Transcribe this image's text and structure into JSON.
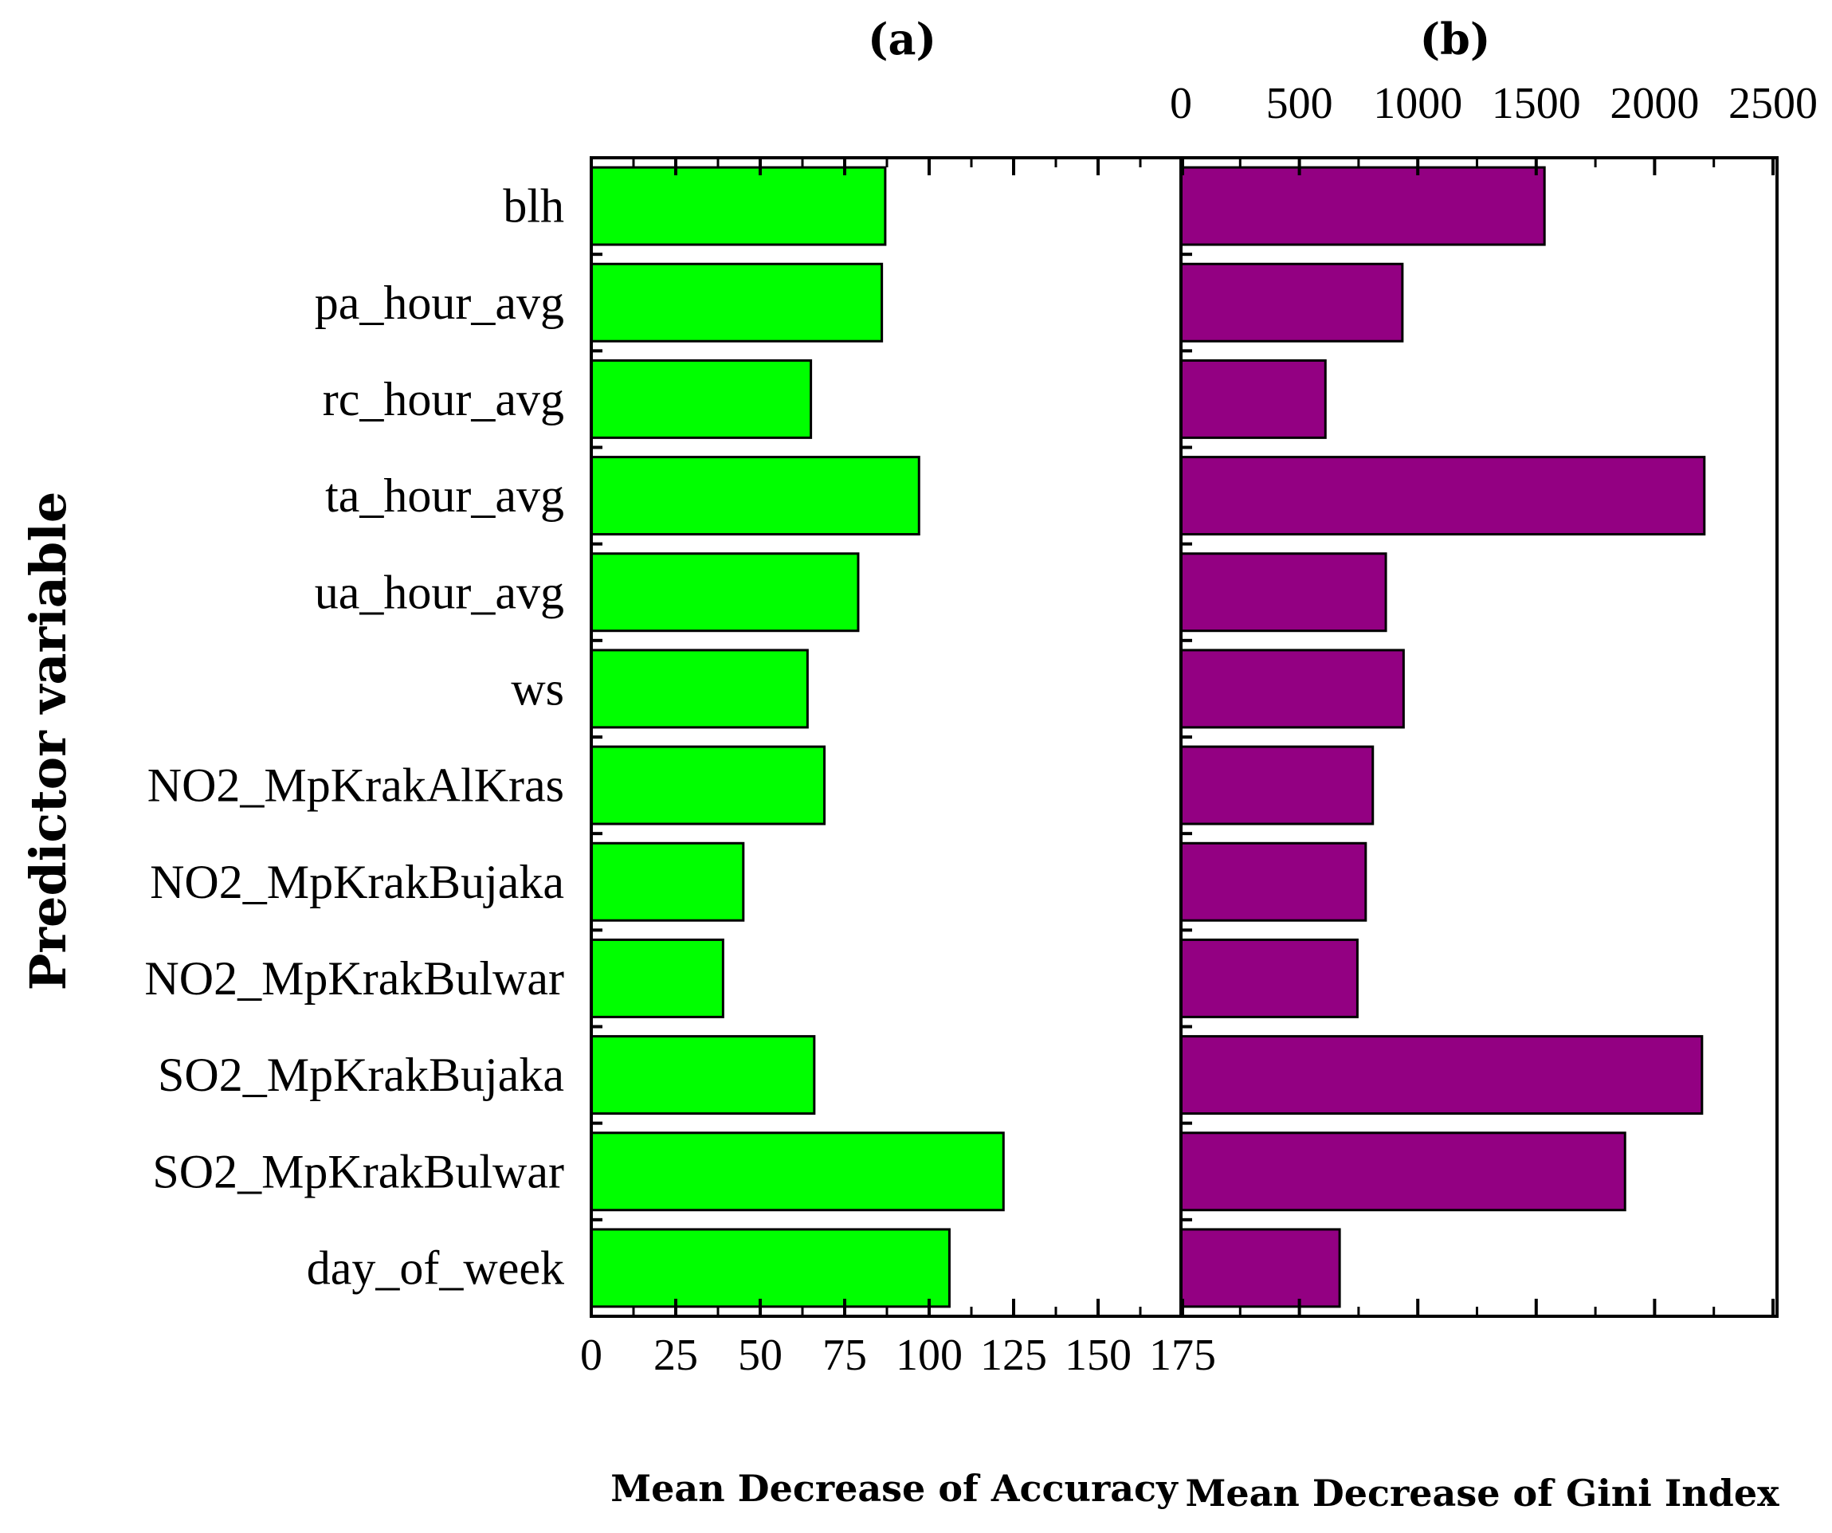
{
  "chart_data": {
    "type": "bar",
    "orientation": "horizontal",
    "ylabel": "Predictor variable",
    "categories": [
      "blh",
      "pa_hour_avg",
      "rc_hour_avg",
      "ta_hour_avg",
      "ua_hour_avg",
      "ws",
      "NO2_MpKrakAlKras",
      "NO2_MpKrakBujaka",
      "NO2_MpKrakBulwar",
      "SO2_MpKrakBujaka",
      "SO2_MpKrakBulwar",
      "day_of_week"
    ],
    "panels": [
      {
        "id": "a",
        "title": "(a)",
        "xlabel": "Mean Decrease of Accuracy",
        "xlim": [
          0,
          175
        ],
        "ticks": [
          0,
          25,
          50,
          75,
          100,
          125,
          150,
          175
        ],
        "tick_labels": [
          "0",
          "25",
          "50",
          "75",
          "100",
          "125",
          "150",
          "175"
        ],
        "tick_position": "bottom",
        "color": "#00ff00",
        "values": [
          87,
          86,
          65,
          97,
          79,
          64,
          69,
          45,
          39,
          66,
          122,
          106
        ]
      },
      {
        "id": "b",
        "title": "(b)",
        "xlabel": "Mean Decrease of Gini Index",
        "xlim": [
          0,
          2500
        ],
        "ticks": [
          0,
          500,
          1000,
          1500,
          2000,
          2500
        ],
        "tick_labels": [
          "0",
          "500",
          "1000",
          "1500",
          "2000",
          "2500"
        ],
        "tick_position": "top",
        "color": "#930082",
        "values": [
          1535,
          935,
          610,
          2210,
          865,
          940,
          810,
          780,
          745,
          2200,
          1875,
          670
        ]
      }
    ]
  }
}
